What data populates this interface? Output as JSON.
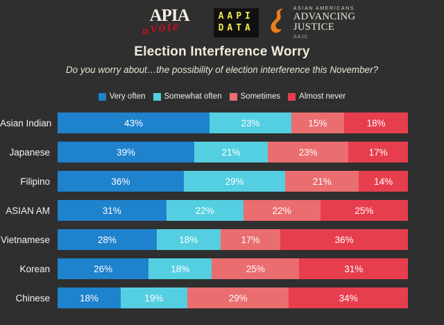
{
  "page": {
    "background": "#2f2f2f",
    "title": "Election Interference Worry",
    "subtitle": "Do you worry about…the possibility of election interference this November?"
  },
  "logos": {
    "apiavote": {
      "main": "APIA",
      "script": "vote"
    },
    "aapidata": {
      "line1": "AAPI",
      "line2": "DATA",
      "text_color": "#f2e94e"
    },
    "advancing_justice": {
      "small_top": "ASIAN AMERICANS",
      "large_line1": "ADVANCING",
      "large_line2": "JUSTICE",
      "small_bottom": "AAJC",
      "flame_color": "#ee7d1d"
    }
  },
  "legend": [
    {
      "label": "Very often",
      "color": "#1e82cd"
    },
    {
      "label": "Somewhat often",
      "color": "#54cfe1"
    },
    {
      "label": "Sometimes",
      "color": "#ea6d70"
    },
    {
      "label": "Almost never",
      "color": "#e73e4e"
    }
  ],
  "chart_data": {
    "type": "bar",
    "orientation": "horizontal-stacked",
    "title": "Election Interference Worry",
    "subtitle": "Do you worry about…the possibility of election interference this November?",
    "value_suffix": "%",
    "xlim": [
      0,
      100
    ],
    "legend_position": "top",
    "categories": [
      "Asian Indian",
      "Japanese",
      "Filipino",
      "ASIAN AM",
      "Vietnamese",
      "Korean",
      "Chinese"
    ],
    "series": [
      {
        "name": "Very often",
        "color": "#1e82cd",
        "values": [
          43,
          39,
          36,
          31,
          28,
          26,
          18
        ]
      },
      {
        "name": "Somewhat often",
        "color": "#54cfe1",
        "values": [
          23,
          21,
          29,
          22,
          18,
          18,
          19
        ]
      },
      {
        "name": "Sometimes",
        "color": "#ea6d70",
        "values": [
          15,
          23,
          21,
          22,
          17,
          25,
          29
        ]
      },
      {
        "name": "Almost never",
        "color": "#e73e4e",
        "values": [
          18,
          17,
          14,
          25,
          36,
          31,
          34
        ]
      }
    ]
  }
}
